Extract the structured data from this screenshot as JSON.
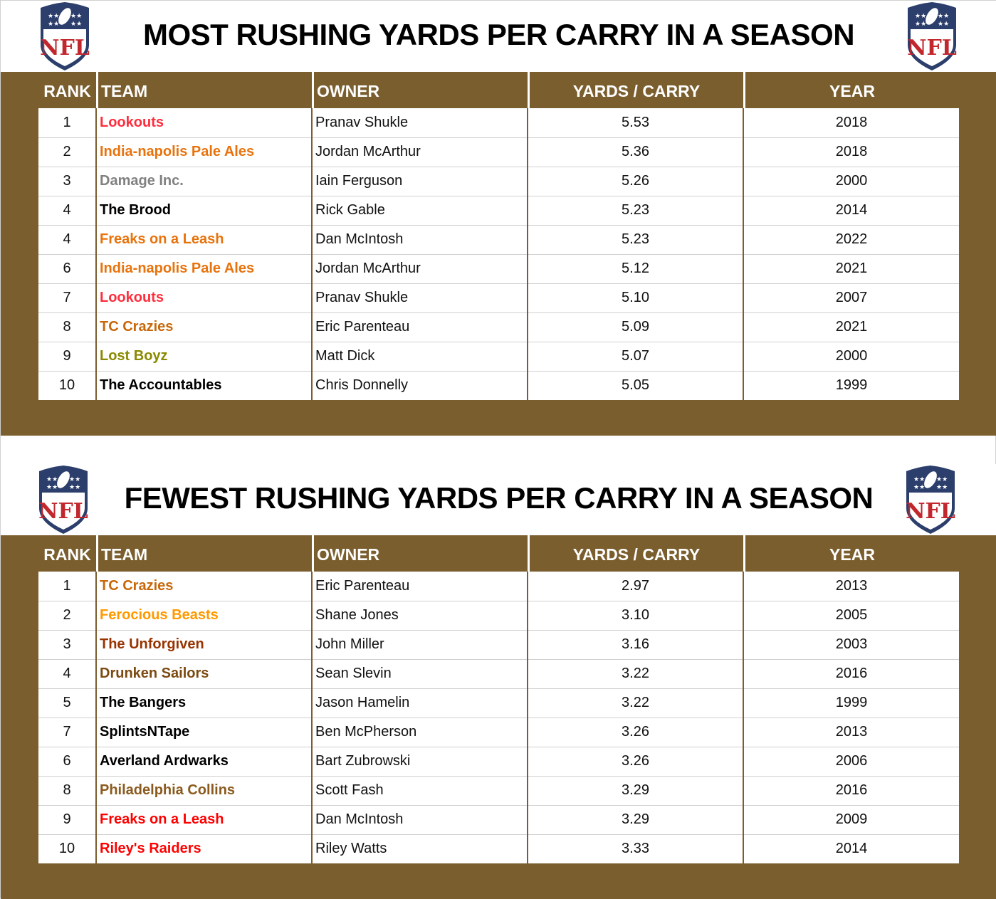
{
  "tables": [
    {
      "title": "MOST RUSHING YARDS PER CARRY IN A SEASON",
      "headers": [
        "RANK",
        "TEAM",
        "OWNER",
        "YARDS / CARRY",
        "YEAR"
      ],
      "rows": [
        {
          "rank": "1",
          "team": "Lookouts",
          "color": "#FF2D3C",
          "owner": "Pranav Shukle",
          "ypc": "5.53",
          "year": "2018"
        },
        {
          "rank": "2",
          "team": "India-napolis Pale Ales",
          "color": "#E8730C",
          "owner": "Jordan McArthur",
          "ypc": "5.36",
          "year": "2018"
        },
        {
          "rank": "3",
          "team": "Damage Inc.",
          "color": "#808080",
          "owner": "Iain Ferguson",
          "ypc": "5.26",
          "year": "2000"
        },
        {
          "rank": "4",
          "team": "The Brood",
          "color": "#000000",
          "owner": "Rick Gable",
          "ypc": "5.23",
          "year": "2014"
        },
        {
          "rank": "4",
          "team": "Freaks on a Leash",
          "color": "#E8730C",
          "owner": "Dan McIntosh",
          "ypc": "5.23",
          "year": "2022"
        },
        {
          "rank": "6",
          "team": "India-napolis Pale Ales",
          "color": "#E8730C",
          "owner": "Jordan McArthur",
          "ypc": "5.12",
          "year": "2021"
        },
        {
          "rank": "7",
          "team": "Lookouts",
          "color": "#FF2D3C",
          "owner": "Pranav Shukle",
          "ypc": "5.10",
          "year": "2007"
        },
        {
          "rank": "8",
          "team": "TC Crazies",
          "color": "#C8680A",
          "owner": "Eric Parenteau",
          "ypc": "5.09",
          "year": "2021"
        },
        {
          "rank": "9",
          "team": "Lost Boyz",
          "color": "#8A8A00",
          "owner": "Matt Dick",
          "ypc": "5.07",
          "year": "2000"
        },
        {
          "rank": "10",
          "team": "The Accountables",
          "color": "#000000",
          "owner": "Chris Donnelly",
          "ypc": "5.05",
          "year": "1999"
        }
      ]
    },
    {
      "title": "FEWEST RUSHING YARDS PER CARRY IN A SEASON",
      "headers": [
        "RANK",
        "TEAM",
        "OWNER",
        "YARDS / CARRY",
        "YEAR"
      ],
      "rows": [
        {
          "rank": "1",
          "team": "TC Crazies",
          "color": "#C8680A",
          "owner": "Eric Parenteau",
          "ypc": "2.97",
          "year": "2013"
        },
        {
          "rank": "2",
          "team": "Ferocious Beasts",
          "color": "#FF9900",
          "owner": "Shane Jones",
          "ypc": "3.10",
          "year": "2005"
        },
        {
          "rank": "3",
          "team": "The Unforgiven",
          "color": "#993300",
          "owner": "John Miller",
          "ypc": "3.16",
          "year": "2003"
        },
        {
          "rank": "4",
          "team": "Drunken Sailors",
          "color": "#7B4A10",
          "owner": "Sean Slevin",
          "ypc": "3.22",
          "year": "2016"
        },
        {
          "rank": "5",
          "team": "The Bangers",
          "color": "#000000",
          "owner": "Jason Hamelin",
          "ypc": "3.22",
          "year": "1999"
        },
        {
          "rank": "7",
          "team": "SplintsNTape",
          "color": "#000000",
          "owner": "Ben McPherson",
          "ypc": "3.26",
          "year": "2013"
        },
        {
          "rank": "6",
          "team": "Averland Ardwarks",
          "color": "#000000",
          "owner": "Bart Zubrowski",
          "ypc": "3.26",
          "year": "2006"
        },
        {
          "rank": "8",
          "team": "Philadelphia Collins",
          "color": "#8B5A1E",
          "owner": "Scott Fash",
          "ypc": "3.29",
          "year": "2016"
        },
        {
          "rank": "9",
          "team": "Freaks on a Leash",
          "color": "#FF0000",
          "owner": "Dan McIntosh",
          "ypc": "3.29",
          "year": "2009"
        },
        {
          "rank": "10",
          "team": "Riley's Raiders",
          "color": "#FF0000",
          "owner": "Riley Watts",
          "ypc": "3.33",
          "year": "2014"
        }
      ]
    }
  ],
  "logo_text": "NFL",
  "colors": {
    "band": "#7B5E2E"
  }
}
